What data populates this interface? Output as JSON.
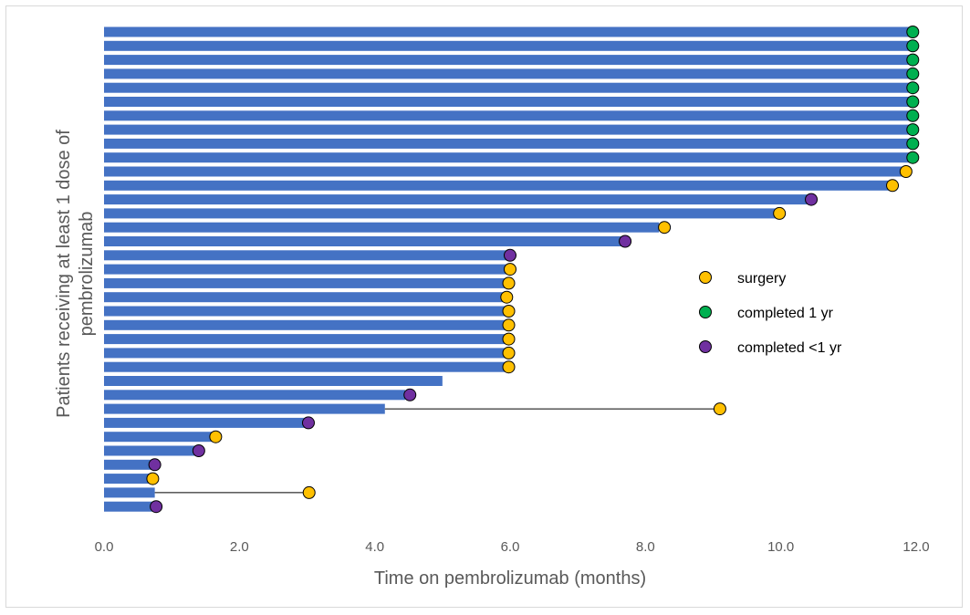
{
  "chart_data": {
    "type": "bar",
    "orientation": "horizontal",
    "xlabel": "Time on pembrolizumab (months)",
    "ylabel": "Patients receiving at least 1 dose of pembrolizumab",
    "xlim": [
      0,
      12
    ],
    "x_ticks": [
      "0.0",
      "2.0",
      "4.0",
      "6.0",
      "8.0",
      "10.0",
      "12.0"
    ],
    "grid": false,
    "legend_position": "right-center",
    "colors": {
      "bar": "#4472c4",
      "surgery": "#ffc000",
      "completed_1yr": "#00b050",
      "completed_lt_1yr": "#7030a0",
      "connector": "#000000"
    },
    "legend": [
      {
        "key": "surgery",
        "label": "surgery"
      },
      {
        "key": "completed_1yr",
        "label": "completed 1 yr"
      },
      {
        "key": "completed_lt_1yr",
        "label": "completed <1 yr"
      }
    ],
    "patients": [
      {
        "duration": 11.9,
        "marker": "completed_1yr",
        "marker_x": 11.95
      },
      {
        "duration": 11.9,
        "marker": "completed_1yr",
        "marker_x": 11.95
      },
      {
        "duration": 11.9,
        "marker": "completed_1yr",
        "marker_x": 11.95
      },
      {
        "duration": 11.9,
        "marker": "completed_1yr",
        "marker_x": 11.95
      },
      {
        "duration": 11.9,
        "marker": "completed_1yr",
        "marker_x": 11.95
      },
      {
        "duration": 11.9,
        "marker": "completed_1yr",
        "marker_x": 11.95
      },
      {
        "duration": 11.9,
        "marker": "completed_1yr",
        "marker_x": 11.95
      },
      {
        "duration": 11.9,
        "marker": "completed_1yr",
        "marker_x": 11.95
      },
      {
        "duration": 11.9,
        "marker": "completed_1yr",
        "marker_x": 11.95
      },
      {
        "duration": 11.9,
        "marker": "completed_1yr",
        "marker_x": 11.95
      },
      {
        "duration": 11.8,
        "marker": "surgery",
        "marker_x": 11.85
      },
      {
        "duration": 11.6,
        "marker": "surgery",
        "marker_x": 11.65
      },
      {
        "duration": 10.4,
        "marker": "completed_lt_1yr",
        "marker_x": 10.45
      },
      {
        "duration": 9.95,
        "marker": "surgery",
        "marker_x": 9.98
      },
      {
        "duration": 8.2,
        "marker": "surgery",
        "marker_x": 8.28
      },
      {
        "duration": 7.7,
        "marker": "completed_lt_1yr",
        "marker_x": 7.7
      },
      {
        "duration": 5.95,
        "marker": "completed_lt_1yr",
        "marker_x": 6.0
      },
      {
        "duration": 5.95,
        "marker": "surgery",
        "marker_x": 6.0
      },
      {
        "duration": 5.95,
        "marker": "surgery",
        "marker_x": 5.98
      },
      {
        "duration": 5.95,
        "marker": "surgery",
        "marker_x": 5.95
      },
      {
        "duration": 5.95,
        "marker": "surgery",
        "marker_x": 5.98
      },
      {
        "duration": 5.95,
        "marker": "surgery",
        "marker_x": 5.98
      },
      {
        "duration": 5.95,
        "marker": "surgery",
        "marker_x": 5.98
      },
      {
        "duration": 5.95,
        "marker": "surgery",
        "marker_x": 5.98
      },
      {
        "duration": 5.95,
        "marker": "surgery",
        "marker_x": 5.98
      },
      {
        "duration": 5.0,
        "marker": null,
        "marker_x": null
      },
      {
        "duration": 4.45,
        "marker": "completed_lt_1yr",
        "marker_x": 4.52
      },
      {
        "duration": 4.15,
        "marker": "surgery",
        "marker_x": 9.1,
        "connector_from": 4.15
      },
      {
        "duration": 3.0,
        "marker": "completed_lt_1yr",
        "marker_x": 3.02
      },
      {
        "duration": 1.6,
        "marker": "surgery",
        "marker_x": 1.65
      },
      {
        "duration": 1.35,
        "marker": "completed_lt_1yr",
        "marker_x": 1.4
      },
      {
        "duration": 0.72,
        "marker": "completed_lt_1yr",
        "marker_x": 0.75
      },
      {
        "duration": 0.72,
        "marker": "surgery",
        "marker_x": 0.72
      },
      {
        "duration": 0.75,
        "marker": "surgery",
        "marker_x": 3.03,
        "connector_from": 0.75
      },
      {
        "duration": 0.75,
        "marker": "completed_lt_1yr",
        "marker_x": 0.77
      }
    ]
  }
}
